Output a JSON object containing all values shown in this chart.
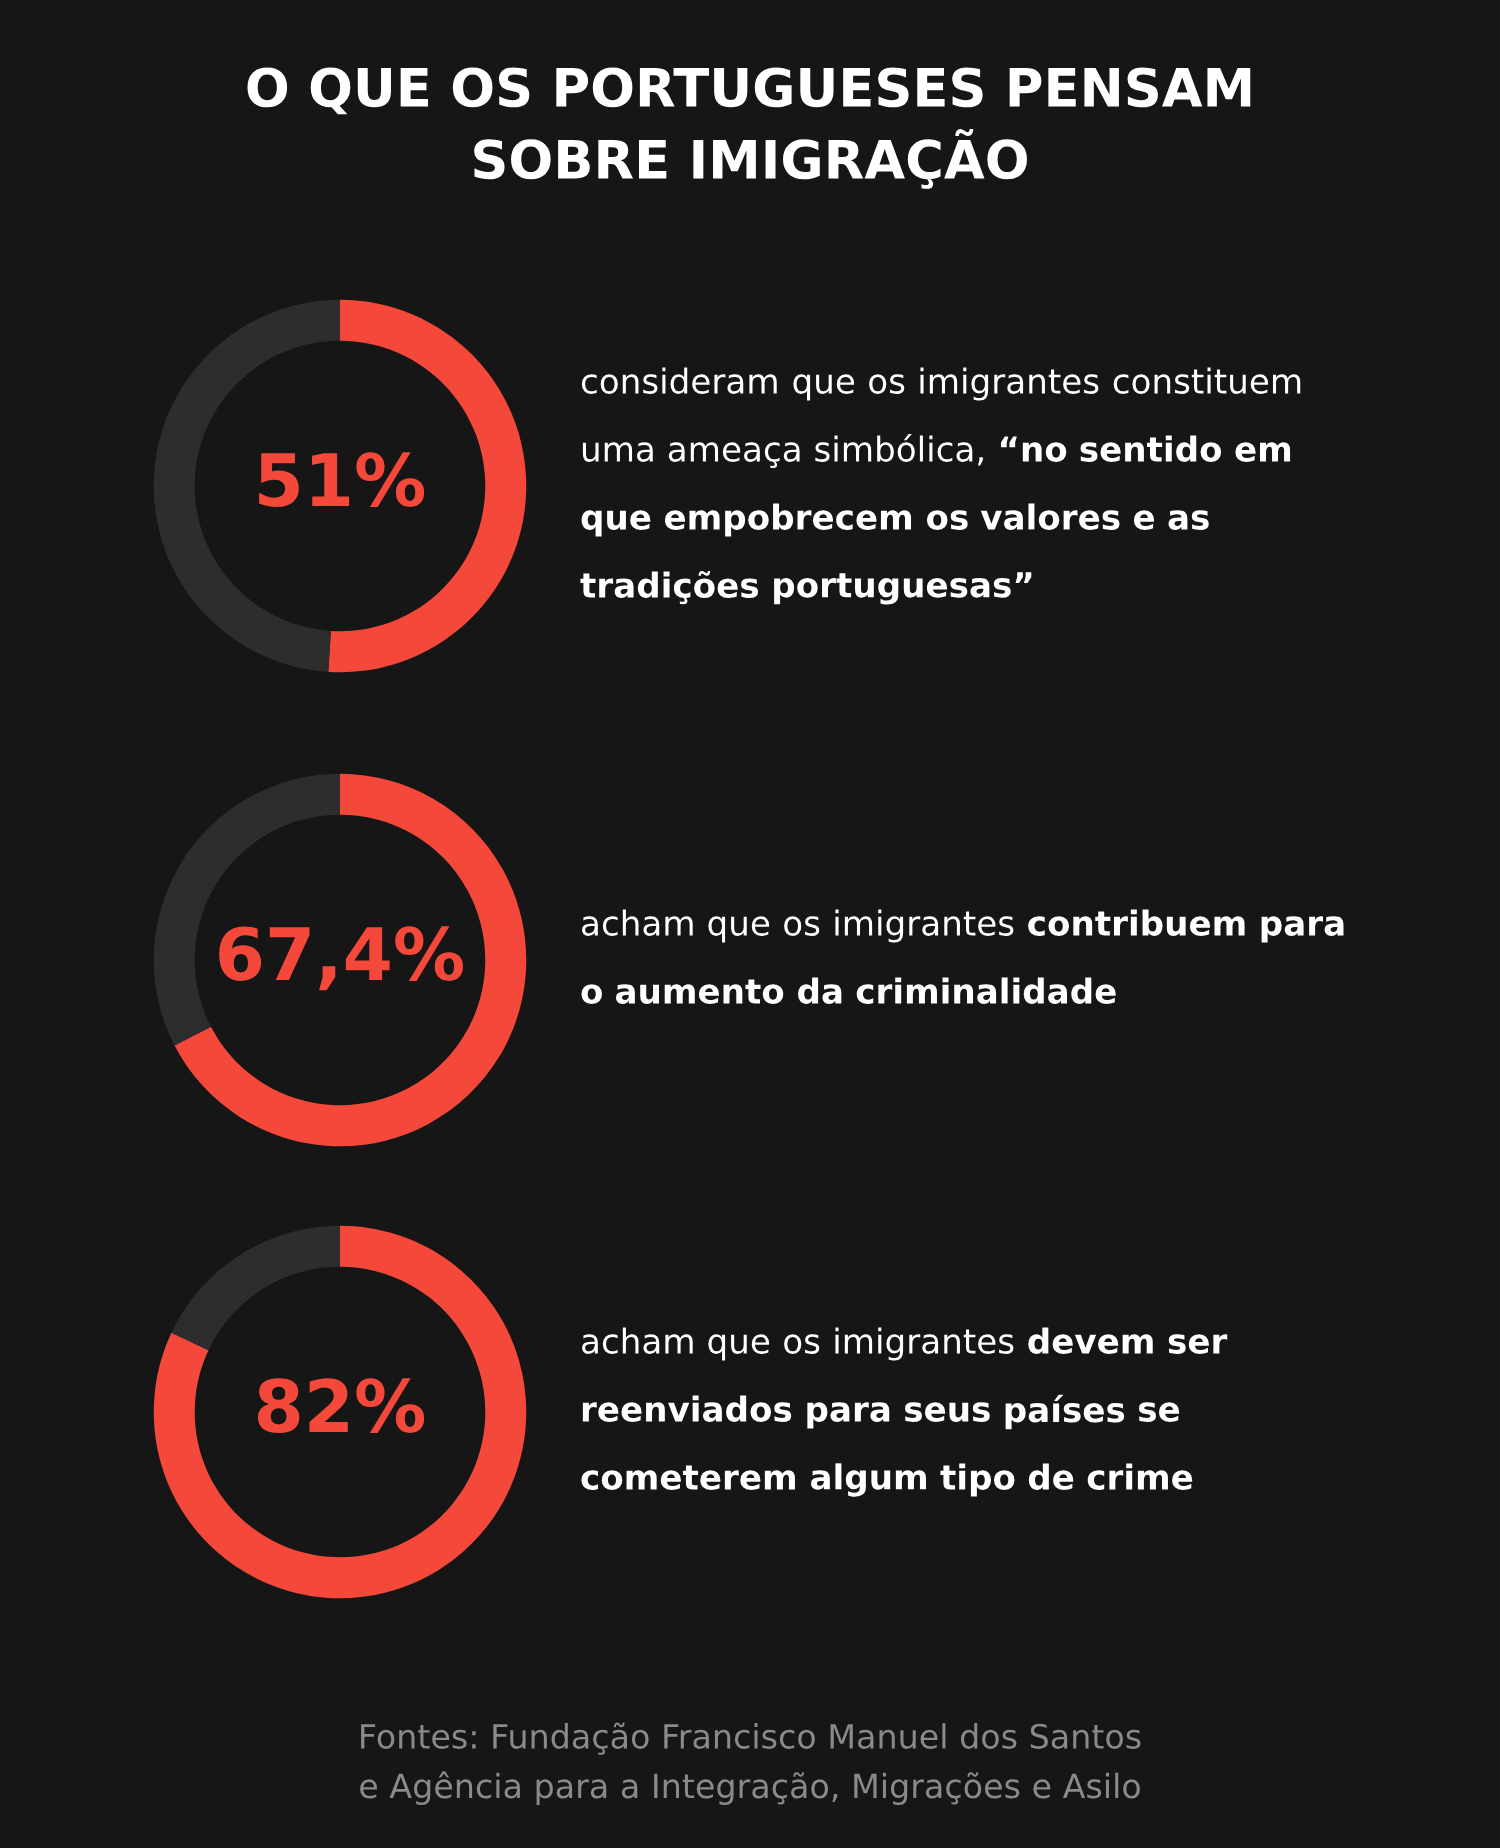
{
  "chart_data": [
    {
      "type": "donut",
      "title": "O QUE OS PORTUGUESES PENSAM\nSOBRE IMIGRAÇÃO",
      "categories": [
        null,
        null
      ],
      "values": [
        51,
        49
      ],
      "colors": [
        "#f4493a",
        "#2d2d2d"
      ],
      "value_labels": [
        "51%",
        null
      ],
      "annotations": [
        "consideram que os imigrantes constituem uma ameaça simbólica,",
        "“no sentido em que empobrecem os valores e as tradições portuguesas”"
      ]
    },
    {
      "type": "donut",
      "categories": [
        null,
        null
      ],
      "values": [
        67.4,
        32.6
      ],
      "colors": [
        "#f4493a",
        "#2d2d2d"
      ],
      "value_labels": [
        "67,4%",
        null
      ],
      "annotations": [
        "acham que os imigrantes",
        "contribuem para o aumento da criminalidade"
      ]
    },
    {
      "type": "donut",
      "categories": [
        null,
        null
      ],
      "values": [
        82,
        18
      ],
      "colors": [
        "#f4493a",
        "#2d2d2d"
      ],
      "value_labels": [
        "82%",
        null
      ],
      "annotations": [
        "acham que os imigrantes",
        "devem ser reenviados para seus países se cometerem algum tipo de crime",
        "Fontes: Fundação Francisco Manuel dos Santos\ne Agência para a Integração, Migrações e Asilo"
      ]
    }
  ]
}
